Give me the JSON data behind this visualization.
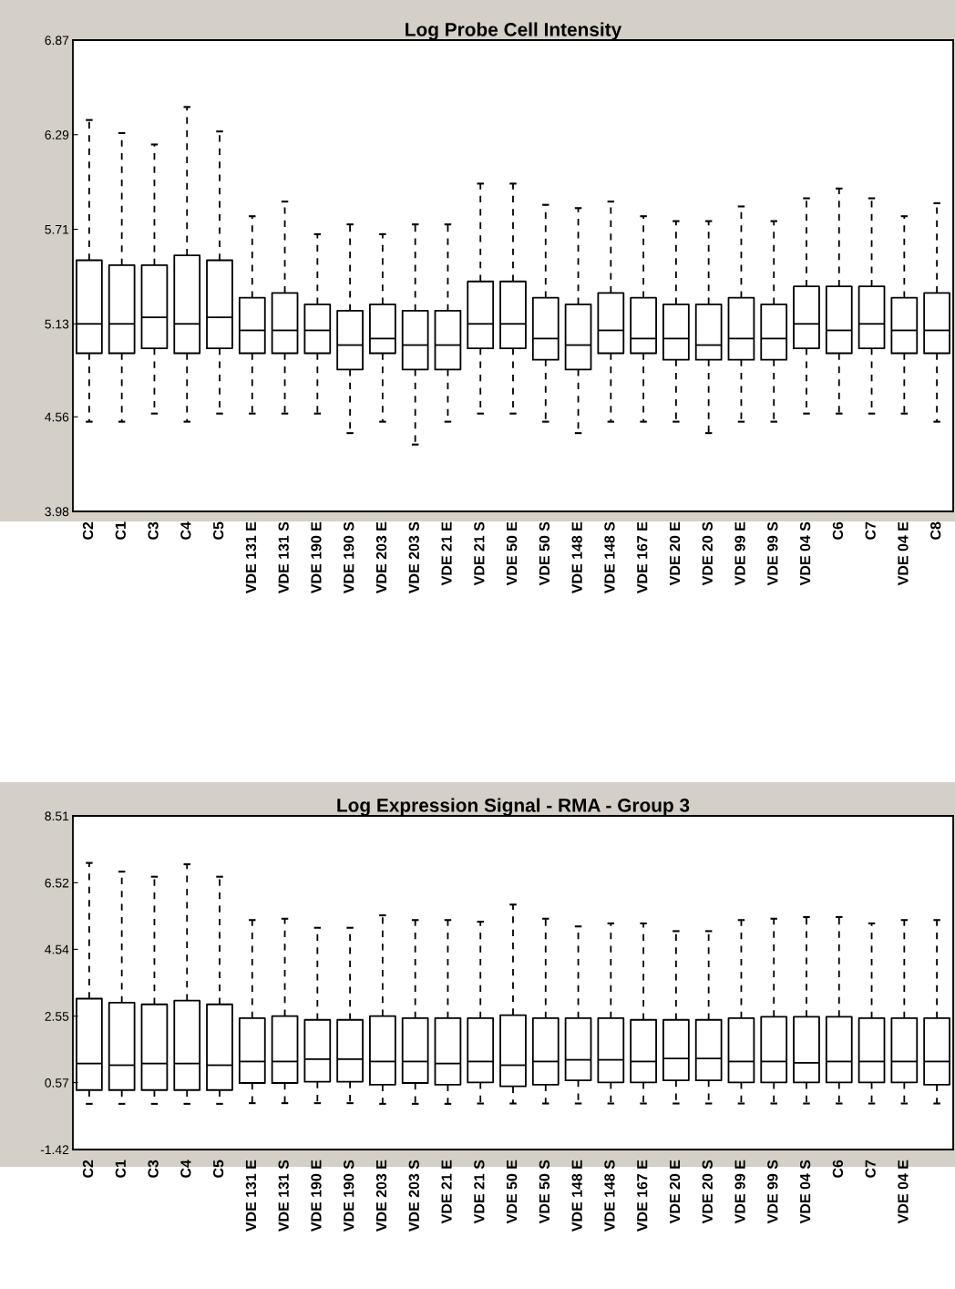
{
  "chart_data": [
    {
      "type": "box",
      "title": "Log Probe Cell Intensity",
      "categories": [
        "C2",
        "C1",
        "C3",
        "C4",
        "C5",
        "VDE 131 E",
        "VDE 131 S",
        "VDE 190 E",
        "VDE 190 S",
        "VDE 203 E",
        "VDE 203 S",
        "VDE 21 E",
        "VDE 21 S",
        "VDE 50 E",
        "VDE 50 S",
        "VDE 148 E",
        "VDE 148 S",
        "VDE 167 E",
        "VDE 20 E",
        "VDE 20 S",
        "VDE 99 E",
        "VDE 99 S",
        "VDE 04 S",
        "C6",
        "C7",
        "VDE 04 E",
        "C8"
      ],
      "boxes": [
        {
          "low": 4.53,
          "q1": 4.95,
          "median": 5.13,
          "q3": 5.52,
          "high": 6.38
        },
        {
          "low": 4.53,
          "q1": 4.95,
          "median": 5.13,
          "q3": 5.49,
          "high": 6.3
        },
        {
          "low": 4.58,
          "q1": 4.98,
          "median": 5.17,
          "q3": 5.49,
          "high": 6.23
        },
        {
          "low": 4.53,
          "q1": 4.95,
          "median": 5.13,
          "q3": 5.55,
          "high": 6.46
        },
        {
          "low": 4.58,
          "q1": 4.98,
          "median": 5.17,
          "q3": 5.52,
          "high": 6.31
        },
        {
          "low": 4.58,
          "q1": 4.95,
          "median": 5.09,
          "q3": 5.29,
          "high": 5.79
        },
        {
          "low": 4.58,
          "q1": 4.95,
          "median": 5.09,
          "q3": 5.32,
          "high": 5.88
        },
        {
          "low": 4.58,
          "q1": 4.95,
          "median": 5.09,
          "q3": 5.25,
          "high": 5.68
        },
        {
          "low": 4.46,
          "q1": 4.85,
          "median": 5.0,
          "q3": 5.21,
          "high": 5.74
        },
        {
          "low": 4.53,
          "q1": 4.95,
          "median": 5.04,
          "q3": 5.25,
          "high": 5.68
        },
        {
          "low": 4.39,
          "q1": 4.85,
          "median": 5.0,
          "q3": 5.21,
          "high": 5.74
        },
        {
          "low": 4.53,
          "q1": 4.85,
          "median": 5.0,
          "q3": 5.21,
          "high": 5.74
        },
        {
          "low": 4.58,
          "q1": 4.98,
          "median": 5.13,
          "q3": 5.39,
          "high": 5.99
        },
        {
          "low": 4.58,
          "q1": 4.98,
          "median": 5.13,
          "q3": 5.39,
          "high": 5.99
        },
        {
          "low": 4.53,
          "q1": 4.91,
          "median": 5.04,
          "q3": 5.29,
          "high": 5.86
        },
        {
          "low": 4.46,
          "q1": 4.85,
          "median": 5.0,
          "q3": 5.25,
          "high": 5.84
        },
        {
          "low": 4.53,
          "q1": 4.95,
          "median": 5.09,
          "q3": 5.32,
          "high": 5.88
        },
        {
          "low": 4.53,
          "q1": 4.95,
          "median": 5.04,
          "q3": 5.29,
          "high": 5.79
        },
        {
          "low": 4.53,
          "q1": 4.91,
          "median": 5.04,
          "q3": 5.25,
          "high": 5.76
        },
        {
          "low": 4.46,
          "q1": 4.91,
          "median": 5.0,
          "q3": 5.25,
          "high": 5.76
        },
        {
          "low": 4.53,
          "q1": 4.91,
          "median": 5.04,
          "q3": 5.29,
          "high": 5.85
        },
        {
          "low": 4.53,
          "q1": 4.91,
          "median": 5.04,
          "q3": 5.25,
          "high": 5.76
        },
        {
          "low": 4.58,
          "q1": 4.98,
          "median": 5.13,
          "q3": 5.36,
          "high": 5.9
        },
        {
          "low": 4.58,
          "q1": 4.95,
          "median": 5.09,
          "q3": 5.36,
          "high": 5.96
        },
        {
          "low": 4.58,
          "q1": 4.98,
          "median": 5.13,
          "q3": 5.36,
          "high": 5.9
        },
        {
          "low": 4.58,
          "q1": 4.95,
          "median": 5.09,
          "q3": 5.29,
          "high": 5.79
        },
        {
          "low": 4.53,
          "q1": 4.95,
          "median": 5.09,
          "q3": 5.32,
          "high": 5.87
        }
      ],
      "ylim": [
        3.98,
        6.87
      ],
      "yticks": [
        3.98,
        4.56,
        5.13,
        5.71,
        6.29,
        6.87
      ],
      "grid": false
    },
    {
      "type": "box",
      "title": "Log Expression Signal - RMA - Group 3",
      "categories": [
        "C2",
        "C1",
        "C3",
        "C4",
        "C5",
        "VDE 131 E",
        "VDE 131 S",
        "VDE 190 E",
        "VDE 190 S",
        "VDE 203 E",
        "VDE 203 S",
        "VDE 21 E",
        "VDE 21 S",
        "VDE 50 E",
        "VDE 50 S",
        "VDE 148 E",
        "VDE 148 S",
        "VDE 167 E",
        "VDE 20 E",
        "VDE 20 S",
        "VDE 99 E",
        "VDE 99 S",
        "VDE 04 S",
        "C6",
        "C7",
        "VDE 04 E",
        null
      ],
      "boxes": [
        {
          "low": -0.06,
          "q1": 0.35,
          "median": 1.14,
          "q3": 3.07,
          "high": 7.11
        },
        {
          "low": -0.06,
          "q1": 0.35,
          "median": 1.09,
          "q3": 2.95,
          "high": 6.85
        },
        {
          "low": -0.06,
          "q1": 0.35,
          "median": 1.14,
          "q3": 2.9,
          "high": 6.7
        },
        {
          "low": -0.06,
          "q1": 0.35,
          "median": 1.14,
          "q3": 3.01,
          "high": 7.07
        },
        {
          "low": -0.06,
          "q1": 0.35,
          "median": 1.09,
          "q3": 2.9,
          "high": 6.7
        },
        {
          "low": -0.04,
          "q1": 0.56,
          "median": 1.2,
          "q3": 2.49,
          "high": 5.41
        },
        {
          "low": -0.04,
          "q1": 0.56,
          "median": 1.2,
          "q3": 2.55,
          "high": 5.45
        },
        {
          "low": -0.04,
          "q1": 0.6,
          "median": 1.27,
          "q3": 2.44,
          "high": 5.18
        },
        {
          "low": -0.04,
          "q1": 0.6,
          "median": 1.27,
          "q3": 2.44,
          "high": 5.18
        },
        {
          "low": -0.06,
          "q1": 0.51,
          "median": 1.2,
          "q3": 2.55,
          "high": 5.55
        },
        {
          "low": -0.06,
          "q1": 0.56,
          "median": 1.2,
          "q3": 2.49,
          "high": 5.41
        },
        {
          "low": -0.06,
          "q1": 0.51,
          "median": 1.14,
          "q3": 2.49,
          "high": 5.41
        },
        {
          "low": -0.05,
          "q1": 0.58,
          "median": 1.2,
          "q3": 2.49,
          "high": 5.36
        },
        {
          "low": -0.05,
          "q1": 0.46,
          "median": 1.09,
          "q3": 2.58,
          "high": 5.87
        },
        {
          "low": -0.05,
          "q1": 0.51,
          "median": 1.2,
          "q3": 2.49,
          "high": 5.45
        },
        {
          "low": -0.05,
          "q1": 0.64,
          "median": 1.25,
          "q3": 2.49,
          "high": 5.22
        },
        {
          "low": -0.05,
          "q1": 0.58,
          "median": 1.25,
          "q3": 2.49,
          "high": 5.31
        },
        {
          "low": -0.05,
          "q1": 0.58,
          "median": 1.2,
          "q3": 2.44,
          "high": 5.31
        },
        {
          "low": -0.05,
          "q1": 0.64,
          "median": 1.29,
          "q3": 2.44,
          "high": 5.08
        },
        {
          "low": -0.05,
          "q1": 0.64,
          "median": 1.29,
          "q3": 2.44,
          "high": 5.08
        },
        {
          "low": -0.05,
          "q1": 0.58,
          "median": 1.2,
          "q3": 2.49,
          "high": 5.41
        },
        {
          "low": -0.05,
          "q1": 0.58,
          "median": 1.2,
          "q3": 2.53,
          "high": 5.45
        },
        {
          "low": -0.05,
          "q1": 0.58,
          "median": 1.16,
          "q3": 2.53,
          "high": 5.5
        },
        {
          "low": -0.05,
          "q1": 0.58,
          "median": 1.2,
          "q3": 2.53,
          "high": 5.5
        },
        {
          "low": -0.05,
          "q1": 0.58,
          "median": 1.2,
          "q3": 2.49,
          "high": 5.31
        },
        {
          "low": -0.05,
          "q1": 0.58,
          "median": 1.2,
          "q3": 2.49,
          "high": 5.41
        },
        {
          "low": -0.05,
          "q1": 0.51,
          "median": 1.2,
          "q3": 2.49,
          "high": 5.41
        }
      ],
      "ylim": [
        -1.42,
        8.51
      ],
      "yticks": [
        -1.42,
        0.57,
        2.55,
        4.54,
        6.52,
        8.51
      ],
      "grid": false
    }
  ]
}
